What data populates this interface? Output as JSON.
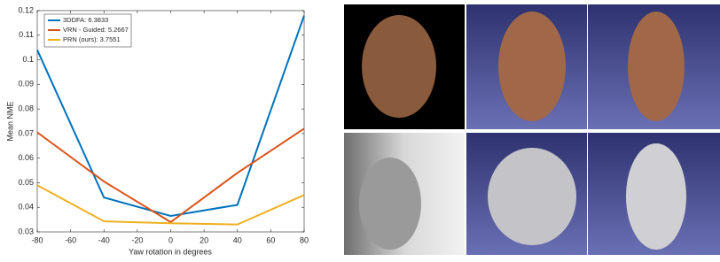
{
  "chart_data": {
    "type": "line",
    "x_label": "Yaw rotation in degrees",
    "y_label": "Mean NME",
    "x": [
      -80,
      -40,
      0,
      40,
      80
    ],
    "series": [
      {
        "name": "3DDFA: 6.3833",
        "color": "#0072bd",
        "values": [
          0.104,
          0.044,
          0.0365,
          0.041,
          0.118
        ]
      },
      {
        "name": "VRN - Guided: 5.2667",
        "color": "#d95319",
        "values": [
          0.0705,
          0.0505,
          0.034,
          0.054,
          0.072
        ]
      },
      {
        "name": "PRN (ours): 3.7551",
        "color": "#edb120",
        "values": [
          0.049,
          0.0343,
          0.0335,
          0.033,
          0.045
        ]
      }
    ],
    "xlim": [
      -80,
      80
    ],
    "xticks": [
      -80,
      -60,
      -40,
      -20,
      0,
      20,
      40,
      60,
      80
    ],
    "ylim": [
      0.03,
      0.12
    ],
    "yticks": [
      0.03,
      0.04,
      0.05,
      0.06,
      0.07,
      0.08,
      0.09,
      0.1,
      0.11,
      0.12
    ],
    "legend": "upper-left"
  }
}
